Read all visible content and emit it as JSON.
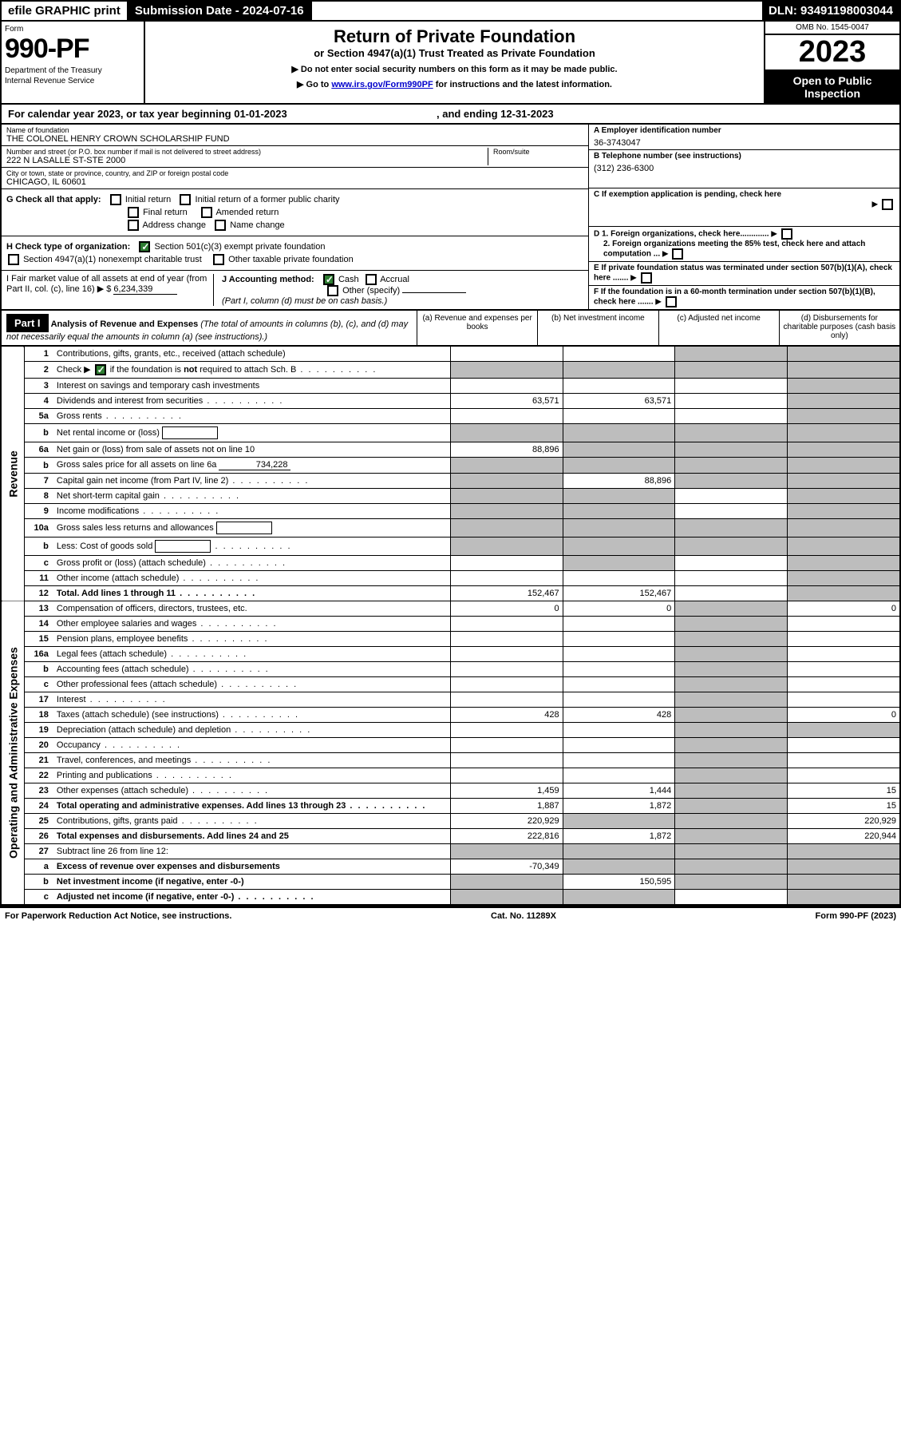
{
  "topbar": {
    "efile": "efile GRAPHIC print",
    "subdate_label": "Submission Date - 2024-07-16",
    "dln": "DLN: 93491198003044"
  },
  "header": {
    "form_label": "Form",
    "form_number": "990-PF",
    "dept1": "Department of the Treasury",
    "dept2": "Internal Revenue Service",
    "title": "Return of Private Foundation",
    "subtitle": "or Section 4947(a)(1) Trust Treated as Private Foundation",
    "note1": "▶ Do not enter social security numbers on this form as it may be made public.",
    "note2_pre": "▶ Go to ",
    "note2_link": "www.irs.gov/Form990PF",
    "note2_post": " for instructions and the latest information.",
    "omb": "OMB No. 1545-0047",
    "year": "2023",
    "open_public": "Open to Public Inspection"
  },
  "calendar": {
    "text_a": "For calendar year 2023, or tax year beginning 01-01-2023",
    "text_b": ", and ending 12-31-2023"
  },
  "info": {
    "name_lbl": "Name of foundation",
    "name_val": "THE COLONEL HENRY CROWN SCHOLARSHIP FUND",
    "addr_lbl": "Number and street (or P.O. box number if mail is not delivered to street address)",
    "addr_val": "222 N LASALLE ST-STE 2000",
    "room_lbl": "Room/suite",
    "city_lbl": "City or town, state or province, country, and ZIP or foreign postal code",
    "city_val": "CHICAGO, IL  60601",
    "ein_lbl": "A Employer identification number",
    "ein_val": "36-3743047",
    "phone_lbl": "B Telephone number (see instructions)",
    "phone_val": "(312) 236-6300",
    "c_lbl": "C If exemption application is pending, check here",
    "d1_lbl": "D 1. Foreign organizations, check here.............",
    "d2_lbl": "2. Foreign organizations meeting the 85% test, check here and attach computation ...",
    "e_lbl": "E  If private foundation status was terminated under section 507(b)(1)(A), check here .......",
    "f_lbl": "F  If the foundation is in a 60-month termination under section 507(b)(1)(B), check here .......",
    "g_label": "G Check all that apply:",
    "g_opts": [
      "Initial return",
      "Initial return of a former public charity",
      "Final return",
      "Amended return",
      "Address change",
      "Name change"
    ],
    "h_label": "H Check type of organization:",
    "h_opt1": "Section 501(c)(3) exempt private foundation",
    "h_opt2": "Section 4947(a)(1) nonexempt charitable trust",
    "h_opt3": "Other taxable private foundation",
    "i_label": "I Fair market value of all assets at end of year (from Part II, col. (c), line 16)",
    "i_val": "6,234,339",
    "j_label": "J Accounting method:",
    "j_cash": "Cash",
    "j_accrual": "Accrual",
    "j_other": "Other (specify)",
    "j_note": "(Part I, column (d) must be on cash basis.)"
  },
  "part1": {
    "header": "Part I",
    "title": "Analysis of Revenue and Expenses",
    "title_note": " (The total of amounts in columns (b), (c), and (d) may not necessarily equal the amounts in column (a) (see instructions).)",
    "col_a": "(a)   Revenue and expenses per books",
    "col_b": "(b)   Net investment income",
    "col_c": "(c)   Adjusted net income",
    "col_d": "(d)   Disbursements for charitable purposes (cash basis only)",
    "side_rev": "Revenue",
    "side_exp": "Operating and Administrative Expenses"
  },
  "rows": [
    {
      "n": "1",
      "d": "Contributions, gifts, grants, etc., received (attach schedule)",
      "a": "",
      "b": "",
      "c": "g",
      "dd": "g"
    },
    {
      "n": "2",
      "d": "Check ▶ ☑ if the foundation is not required to attach Sch. B",
      "dots": true,
      "a": "g",
      "b": "g",
      "c": "g",
      "dd": "g"
    },
    {
      "n": "3",
      "d": "Interest on savings and temporary cash investments",
      "a": "",
      "b": "",
      "c": "",
      "dd": "g"
    },
    {
      "n": "4",
      "d": "Dividends and interest from securities",
      "dots": true,
      "a": "63,571",
      "b": "63,571",
      "c": "",
      "dd": "g"
    },
    {
      "n": "5a",
      "d": "Gross rents",
      "dots": true,
      "a": "",
      "b": "",
      "c": "",
      "dd": "g"
    },
    {
      "n": "b",
      "d": "Net rental income or (loss)",
      "box": true,
      "a": "g",
      "b": "g",
      "c": "g",
      "dd": "g"
    },
    {
      "n": "6a",
      "d": "Net gain or (loss) from sale of assets not on line 10",
      "a": "88,896",
      "b": "g",
      "c": "g",
      "dd": "g"
    },
    {
      "n": "b",
      "d": "Gross sales price for all assets on line 6a",
      "inline": "734,228",
      "a": "g",
      "b": "g",
      "c": "g",
      "dd": "g"
    },
    {
      "n": "7",
      "d": "Capital gain net income (from Part IV, line 2)",
      "dots": true,
      "a": "g",
      "b": "88,896",
      "c": "g",
      "dd": "g"
    },
    {
      "n": "8",
      "d": "Net short-term capital gain",
      "dots": true,
      "a": "g",
      "b": "g",
      "c": "",
      "dd": "g"
    },
    {
      "n": "9",
      "d": "Income modifications",
      "dots": true,
      "a": "g",
      "b": "g",
      "c": "",
      "dd": "g"
    },
    {
      "n": "10a",
      "d": "Gross sales less returns and allowances",
      "box": true,
      "a": "g",
      "b": "g",
      "c": "g",
      "dd": "g"
    },
    {
      "n": "b",
      "d": "Less: Cost of goods sold",
      "dots": true,
      "box": true,
      "a": "g",
      "b": "g",
      "c": "g",
      "dd": "g"
    },
    {
      "n": "c",
      "d": "Gross profit or (loss) (attach schedule)",
      "dots": true,
      "a": "",
      "b": "g",
      "c": "",
      "dd": "g"
    },
    {
      "n": "11",
      "d": "Other income (attach schedule)",
      "dots": true,
      "a": "",
      "b": "",
      "c": "",
      "dd": "g"
    },
    {
      "n": "12",
      "d": "Total. Add lines 1 through 11",
      "dots": true,
      "bold": true,
      "a": "152,467",
      "b": "152,467",
      "c": "",
      "dd": "g"
    },
    {
      "n": "13",
      "d": "Compensation of officers, directors, trustees, etc.",
      "a": "0",
      "b": "0",
      "c": "g",
      "dd": "0"
    },
    {
      "n": "14",
      "d": "Other employee salaries and wages",
      "dots": true,
      "a": "",
      "b": "",
      "c": "g",
      "dd": ""
    },
    {
      "n": "15",
      "d": "Pension plans, employee benefits",
      "dots": true,
      "a": "",
      "b": "",
      "c": "g",
      "dd": ""
    },
    {
      "n": "16a",
      "d": "Legal fees (attach schedule)",
      "dots": true,
      "a": "",
      "b": "",
      "c": "g",
      "dd": ""
    },
    {
      "n": "b",
      "d": "Accounting fees (attach schedule)",
      "dots": true,
      "a": "",
      "b": "",
      "c": "g",
      "dd": ""
    },
    {
      "n": "c",
      "d": "Other professional fees (attach schedule)",
      "dots": true,
      "a": "",
      "b": "",
      "c": "g",
      "dd": ""
    },
    {
      "n": "17",
      "d": "Interest",
      "dots": true,
      "a": "",
      "b": "",
      "c": "g",
      "dd": ""
    },
    {
      "n": "18",
      "d": "Taxes (attach schedule) (see instructions)",
      "dots": true,
      "a": "428",
      "b": "428",
      "c": "g",
      "dd": "0"
    },
    {
      "n": "19",
      "d": "Depreciation (attach schedule) and depletion",
      "dots": true,
      "a": "",
      "b": "",
      "c": "g",
      "dd": "g"
    },
    {
      "n": "20",
      "d": "Occupancy",
      "dots": true,
      "a": "",
      "b": "",
      "c": "g",
      "dd": ""
    },
    {
      "n": "21",
      "d": "Travel, conferences, and meetings",
      "dots": true,
      "a": "",
      "b": "",
      "c": "g",
      "dd": ""
    },
    {
      "n": "22",
      "d": "Printing and publications",
      "dots": true,
      "a": "",
      "b": "",
      "c": "g",
      "dd": ""
    },
    {
      "n": "23",
      "d": "Other expenses (attach schedule)",
      "dots": true,
      "a": "1,459",
      "b": "1,444",
      "c": "g",
      "dd": "15"
    },
    {
      "n": "24",
      "d": "Total operating and administrative expenses. Add lines 13 through 23",
      "dots": true,
      "bold": true,
      "a": "1,887",
      "b": "1,872",
      "c": "g",
      "dd": "15"
    },
    {
      "n": "25",
      "d": "Contributions, gifts, grants paid",
      "dots": true,
      "a": "220,929",
      "b": "g",
      "c": "g",
      "dd": "220,929"
    },
    {
      "n": "26",
      "d": "Total expenses and disbursements. Add lines 24 and 25",
      "bold": true,
      "a": "222,816",
      "b": "1,872",
      "c": "g",
      "dd": "220,944"
    },
    {
      "n": "27",
      "d": "Subtract line 26 from line 12:",
      "a": "g",
      "b": "g",
      "c": "g",
      "dd": "g"
    },
    {
      "n": "a",
      "d": "Excess of revenue over expenses and disbursements",
      "bold": true,
      "a": "-70,349",
      "b": "g",
      "c": "g",
      "dd": "g"
    },
    {
      "n": "b",
      "d": "Net investment income (if negative, enter -0-)",
      "bold": true,
      "a": "g",
      "b": "150,595",
      "c": "g",
      "dd": "g"
    },
    {
      "n": "c",
      "d": "Adjusted net income (if negative, enter -0-)",
      "dots": true,
      "bold": true,
      "a": "g",
      "b": "g",
      "c": "",
      "dd": "g"
    }
  ],
  "footer": {
    "left": "For Paperwork Reduction Act Notice, see instructions.",
    "mid": "Cat. No. 11289X",
    "right": "Form 990-PF (2023)"
  },
  "colors": {
    "grey": "#bdbdbd",
    "link": "#0000cc",
    "checked": "#2e7d32"
  }
}
